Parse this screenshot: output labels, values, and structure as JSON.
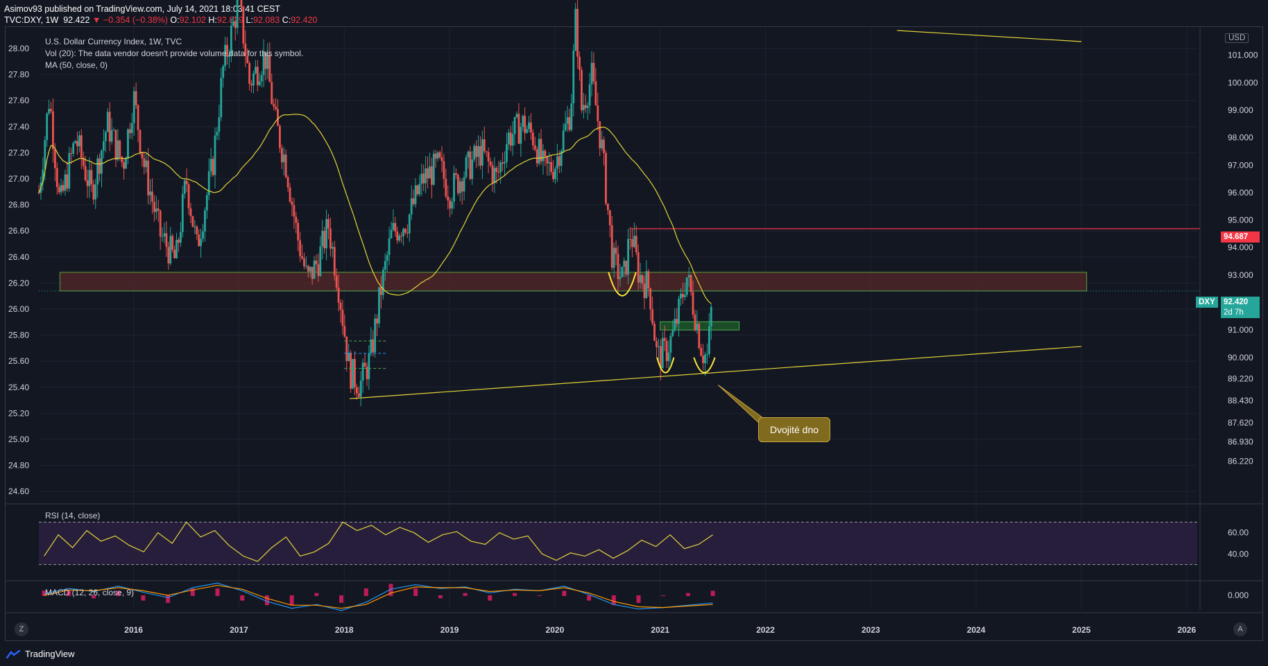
{
  "header": {
    "publish_line": "Asimov93 published on TradingView.com, July 14, 2021 18:03:41 CEST",
    "symbol": "TVC:DXY, 1W",
    "last": "92.422",
    "change": "−0.354 (−0.38%)",
    "o_label": "O:",
    "o_value": "92.102",
    "h_label": "H:",
    "h_value": "92.829",
    "l_label": "L:",
    "l_value": "92.083",
    "c_label": "C:",
    "c_value": "92.420"
  },
  "legend": {
    "title": "U.S. Dollar Currency Index, 1W, TVC",
    "vol": "Vol (20): The data vendor doesn't provide volume data for this symbol.",
    "ma": "MA (50, close, 0)",
    "rsi": "RSI (14, close)",
    "macd": "MACD (12, 26, close, 9)"
  },
  "badges": {
    "currency": "USD",
    "resistance_value": "94.687",
    "symbol_tag": "DXY",
    "price": "92.420",
    "countdown": "2d 7h"
  },
  "annotation": "Dvojité dno",
  "footer": {
    "brand": "TradingView",
    "left_button": "Z",
    "right_button": "A"
  },
  "colors": {
    "background": "#131722",
    "up": "#26a69a",
    "down": "#ef5350",
    "ma": "#e3d53a",
    "resistance_line": "#f23645",
    "zone_fill": "#5a2a2a",
    "zone_border": "#5aa33a",
    "rsi_band": "#2a1f3f"
  },
  "chart_data": [
    {
      "type": "candlestick",
      "title": "U.S. Dollar Currency Index, 1W, TVC",
      "left_axis_ticks": [
        "28.00",
        "27.80",
        "27.60",
        "27.40",
        "27.20",
        "27.00",
        "26.80",
        "26.60",
        "26.40",
        "26.20",
        "26.00",
        "25.80",
        "25.60",
        "25.40",
        "25.20",
        "25.00",
        "24.80",
        "24.60"
      ],
      "right_axis_ticks": [
        "101.000",
        "100.000",
        "99.000",
        "98.000",
        "97.000",
        "96.000",
        "95.000",
        "94.000",
        "93.000",
        "91.000",
        "90.000",
        "89.220",
        "88.430",
        "87.620",
        "86.930",
        "86.220"
      ],
      "right_axis_unit": "USD",
      "x_ticks": [
        "2016",
        "2017",
        "2018",
        "2019",
        "2020",
        "2021",
        "2022",
        "2023",
        "2024",
        "2025",
        "2026"
      ],
      "x_range": [
        2015.1,
        2026.1
      ],
      "y_range": [
        84.8,
        102.0
      ],
      "path": [
        [
          2015.1,
          96.0
        ],
        [
          2015.2,
          99.5
        ],
        [
          2015.3,
          95.5
        ],
        [
          2015.45,
          98.0
        ],
        [
          2015.6,
          96.0
        ],
        [
          2015.75,
          98.5
        ],
        [
          2015.9,
          97.0
        ],
        [
          2016.0,
          99.5
        ],
        [
          2016.1,
          97.0
        ],
        [
          2016.25,
          94.5
        ],
        [
          2016.4,
          93.5
        ],
        [
          2016.5,
          96.5
        ],
        [
          2016.6,
          94.0
        ],
        [
          2016.75,
          97.0
        ],
        [
          2016.85,
          100.5
        ],
        [
          2017.0,
          103.0
        ],
        [
          2017.1,
          100.0
        ],
        [
          2017.25,
          101.0
        ],
        [
          2017.35,
          98.5
        ],
        [
          2017.45,
          97.0
        ],
        [
          2017.55,
          94.5
        ],
        [
          2017.65,
          92.8
        ],
        [
          2017.75,
          93.5
        ],
        [
          2017.85,
          94.8
        ],
        [
          2017.95,
          92.5
        ],
        [
          2018.05,
          89.5
        ],
        [
          2018.15,
          89.0
        ],
        [
          2018.25,
          90.0
        ],
        [
          2018.35,
          92.5
        ],
        [
          2018.45,
          94.5
        ],
        [
          2018.6,
          95.0
        ],
        [
          2018.75,
          96.5
        ],
        [
          2018.9,
          97.0
        ],
        [
          2019.0,
          96.0
        ],
        [
          2019.15,
          96.8
        ],
        [
          2019.3,
          97.5
        ],
        [
          2019.45,
          96.5
        ],
        [
          2019.55,
          98.0
        ],
        [
          2019.7,
          98.5
        ],
        [
          2019.8,
          98.0
        ],
        [
          2019.9,
          96.8
        ],
        [
          2020.0,
          97.0
        ],
        [
          2020.15,
          99.0
        ],
        [
          2020.2,
          102.5
        ],
        [
          2020.25,
          99.0
        ],
        [
          2020.35,
          100.2
        ],
        [
          2020.45,
          97.5
        ],
        [
          2020.55,
          93.5
        ],
        [
          2020.65,
          92.8
        ],
        [
          2020.72,
          94.6
        ],
        [
          2020.8,
          93.0
        ],
        [
          2020.9,
          92.5
        ],
        [
          2020.97,
          90.0
        ],
        [
          2021.05,
          90.2
        ],
        [
          2021.12,
          90.8
        ],
        [
          2021.18,
          91.7
        ],
        [
          2021.25,
          93.0
        ],
        [
          2021.32,
          91.8
        ],
        [
          2021.4,
          90.2
        ],
        [
          2021.45,
          90.0
        ],
        [
          2021.5,
          92.4
        ]
      ],
      "overlays": {
        "resistance_level": 94.687,
        "demand_zone": [
          92.42,
          93.1
        ],
        "small_zone": [
          91.0,
          91.3
        ],
        "current_price": 92.42
      }
    },
    {
      "type": "line",
      "title": "RSI (14, close)",
      "y_ticks": [
        "60.00",
        "40.00"
      ],
      "band": [
        30,
        70
      ],
      "series": [
        {
          "values": [
            38,
            58,
            46,
            62,
            52,
            57,
            48,
            42,
            60,
            50,
            70,
            56,
            62,
            48,
            38,
            33,
            46,
            56,
            38,
            42,
            50,
            70,
            62,
            67,
            58,
            65,
            60,
            51,
            58,
            61,
            52,
            49,
            60,
            54,
            57,
            40,
            34,
            41,
            38,
            44,
            36,
            43,
            53,
            47,
            58,
            45,
            49,
            58
          ]
        }
      ]
    },
    {
      "type": "line",
      "title": "MACD (12, 26, close, 9)",
      "y_ticks": [
        "0.000"
      ],
      "series": [
        {
          "values": [
            0.2,
            0.9,
            0.5,
            1.2,
            0.4,
            -0.3,
            1.0,
            1.6,
            0.6,
            -0.8,
            -1.7,
            -1.2,
            -2.0,
            -0.9,
            0.8,
            1.4,
            0.9,
            1.1,
            0.3,
            0.8,
            0.6,
            1.2,
            0.1,
            -1.2,
            -1.8,
            -1.6,
            -1.3,
            -1.0
          ]
        },
        {
          "values": [
            0.0,
            0.7,
            0.6,
            1.0,
            0.6,
            0.0,
            0.7,
            1.3,
            0.8,
            -0.4,
            -1.3,
            -1.3,
            -1.7,
            -1.2,
            0.3,
            1.1,
            1.0,
            1.0,
            0.5,
            0.7,
            0.6,
            1.0,
            0.3,
            -0.8,
            -1.5,
            -1.6,
            -1.4,
            -1.2
          ]
        }
      ]
    }
  ]
}
